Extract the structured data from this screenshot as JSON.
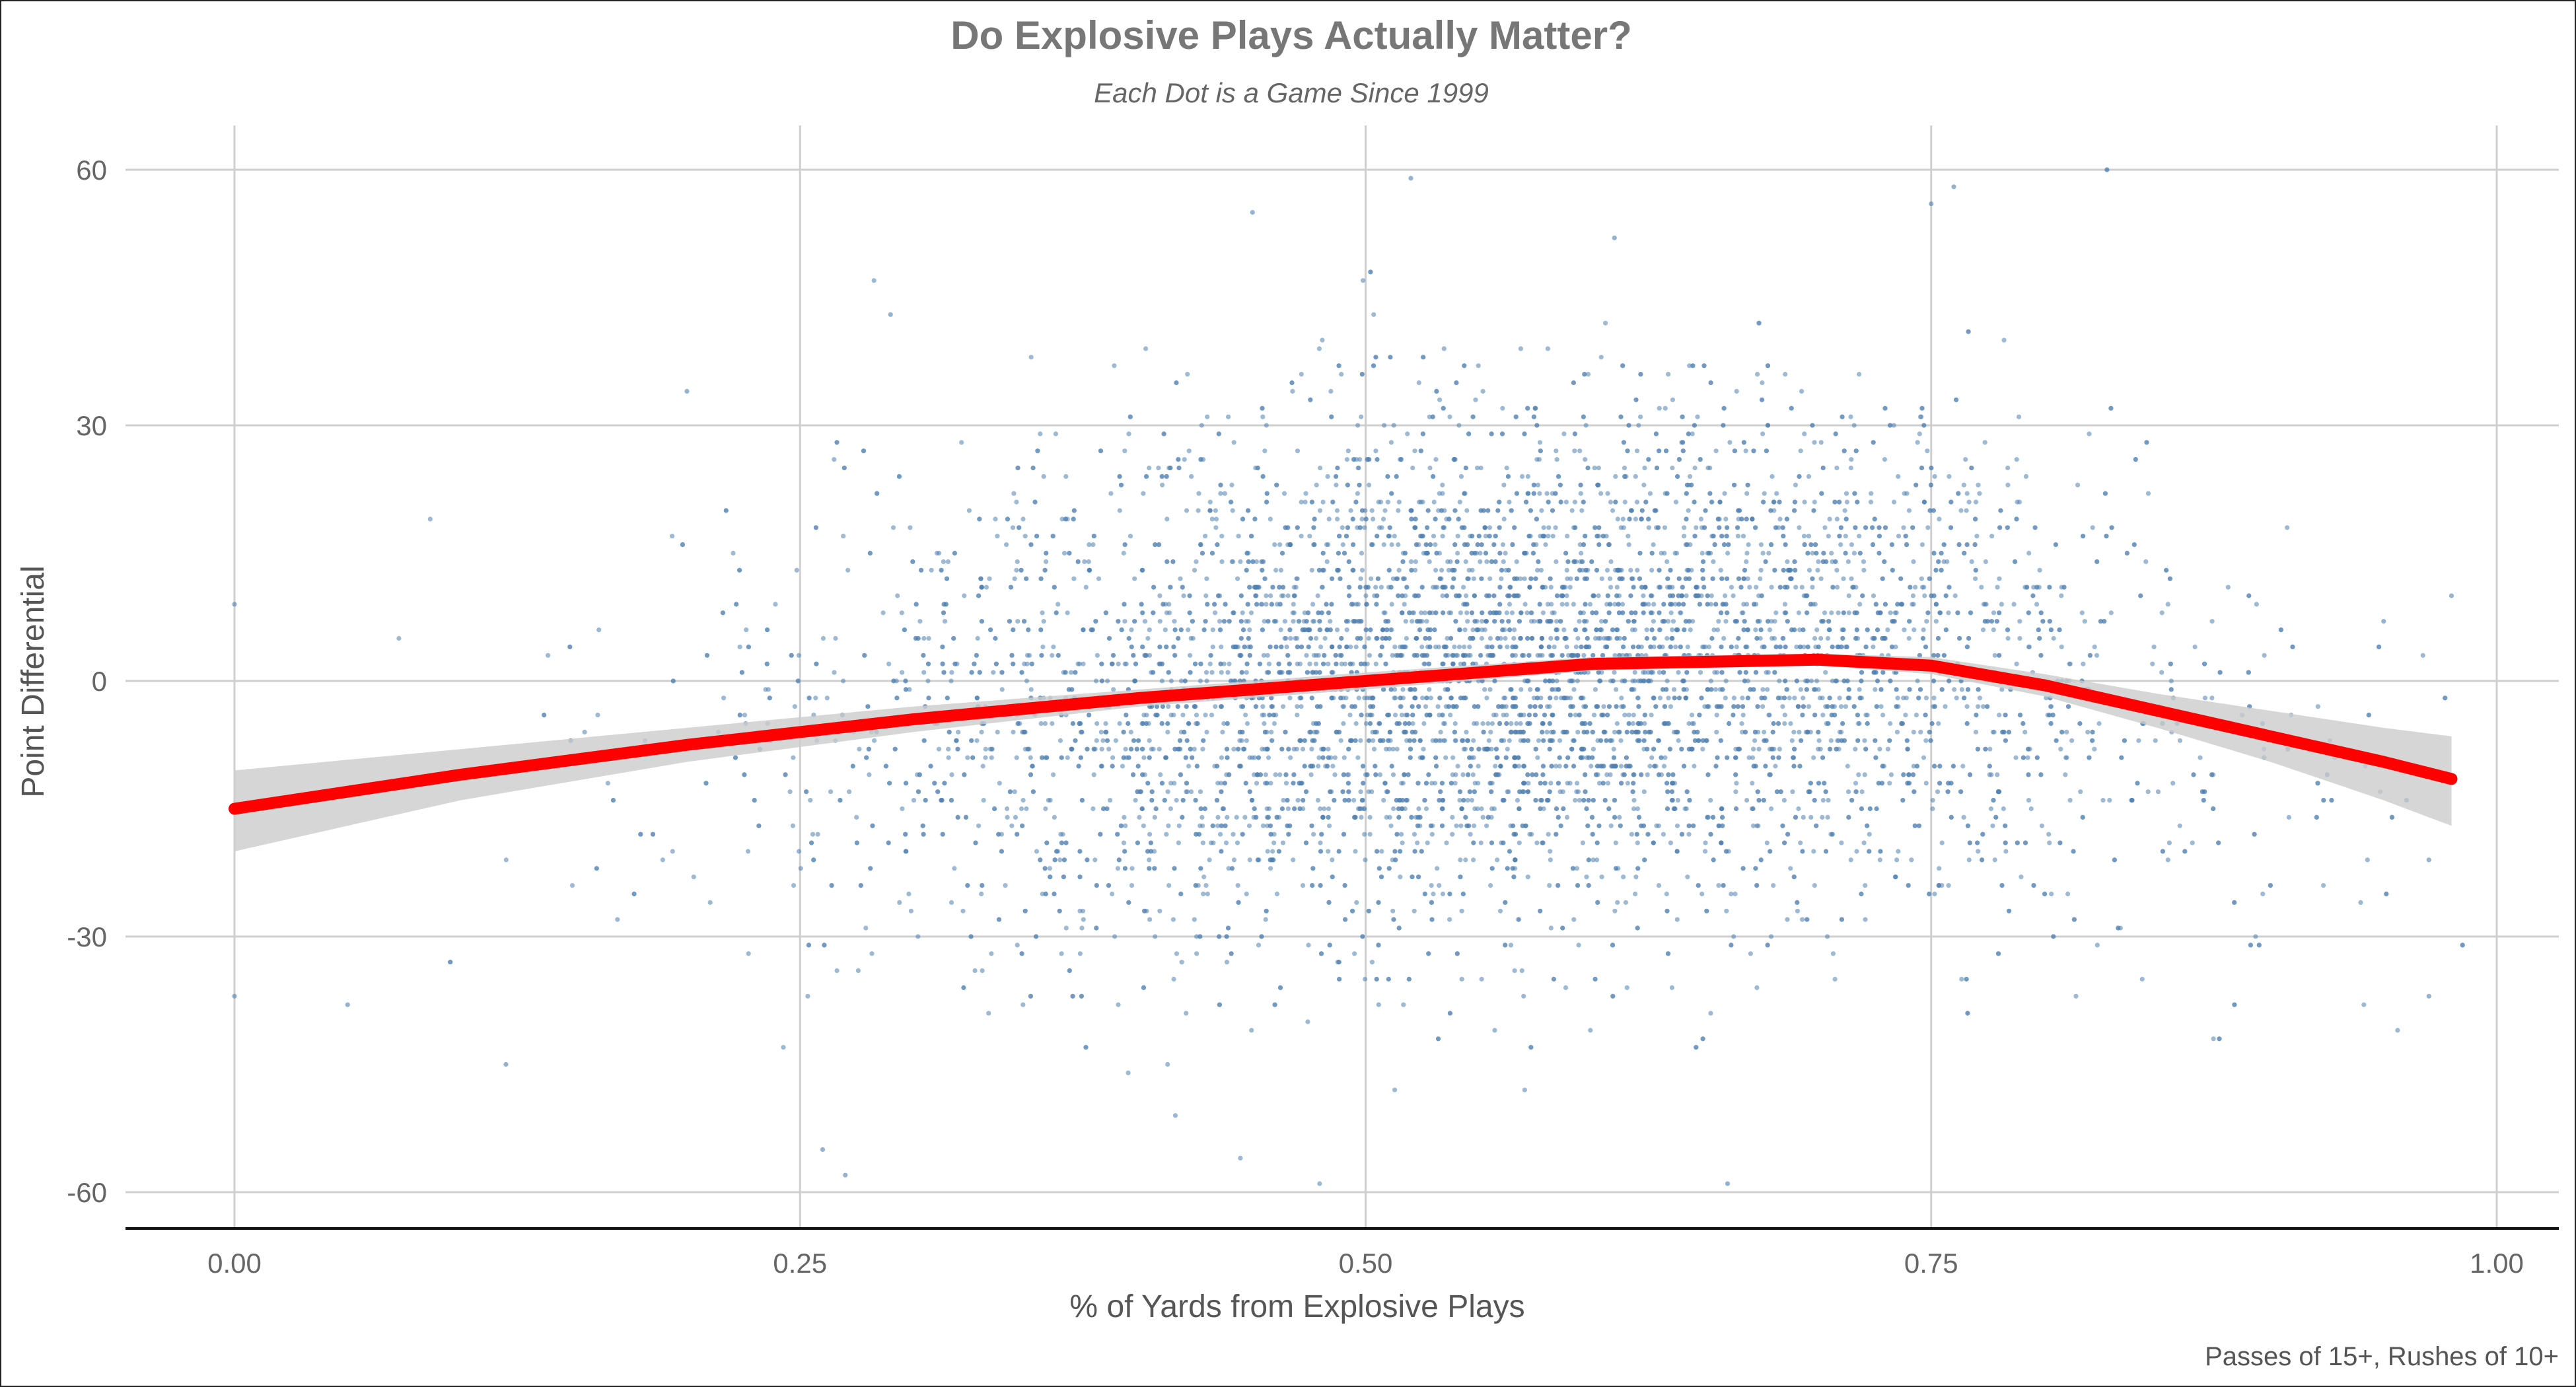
{
  "chart_data": {
    "type": "scatter",
    "title": "Do Explosive Plays Actually Matter?",
    "subtitle": "Each Dot is a Game Since 1999",
    "xlabel": "% of Yards from Explosive Plays",
    "ylabel": "Point Differential",
    "caption": "Passes of 15+, Rushes of 10+",
    "xlim": [
      -0.048,
      1.03
    ],
    "ylim": [
      -64.5,
      65
    ],
    "x_ticks": [
      0.0,
      0.25,
      0.5,
      0.75,
      1.0
    ],
    "x_tick_labels": [
      "0.00",
      "0.25",
      "0.50",
      "0.75",
      "1.00"
    ],
    "y_ticks": [
      -60,
      -30,
      0,
      30,
      60
    ],
    "y_tick_labels": [
      "-60",
      "-30",
      "0",
      "30",
      "60"
    ],
    "grid": true,
    "points_description": "several thousand games, concentrated between x 0.25 and 0.85, y -45 to 45",
    "point_color": "#4f7fb0",
    "point_count_estimate": 7000,
    "example_points": [
      {
        "x": 0.0,
        "y": 9
      },
      {
        "x": 0.0,
        "y": -37
      },
      {
        "x": 0.05,
        "y": -38
      },
      {
        "x": 0.12,
        "y": -45
      },
      {
        "x": 0.2,
        "y": 34
      },
      {
        "x": 0.29,
        "y": 43
      },
      {
        "x": 0.26,
        "y": -55
      },
      {
        "x": 0.27,
        "y": -58
      },
      {
        "x": 0.45,
        "y": 55
      },
      {
        "x": 0.52,
        "y": 59
      },
      {
        "x": 0.61,
        "y": 52
      },
      {
        "x": 0.66,
        "y": -59
      },
      {
        "x": 0.76,
        "y": 58
      },
      {
        "x": 0.75,
        "y": 56
      },
      {
        "x": 0.95,
        "y": 7
      },
      {
        "x": 0.98,
        "y": 10
      },
      {
        "x": 0.97,
        "y": -37
      },
      {
        "x": 0.97,
        "y": -21
      }
    ],
    "smooth": {
      "color": "#ff0000",
      "band_color": "#cccccc",
      "x": [
        0.0,
        0.1,
        0.2,
        0.3,
        0.4,
        0.5,
        0.6,
        0.7,
        0.75,
        0.8,
        0.85,
        0.9,
        0.95,
        0.98
      ],
      "y": [
        -15,
        -11,
        -7.5,
        -4.5,
        -2,
        0,
        2,
        2.5,
        1.8,
        -0.5,
        -3.5,
        -6.5,
        -9.5,
        -11.5
      ],
      "lower": [
        -20,
        -14,
        -9.5,
        -6,
        -3,
        -1,
        1.2,
        1.8,
        0.8,
        -1.8,
        -5.5,
        -9.5,
        -14,
        -17
      ],
      "upper": [
        -10.5,
        -8,
        -5.5,
        -3,
        -1,
        1,
        2.8,
        3.2,
        2.8,
        0.8,
        -1.5,
        -3.5,
        -5.5,
        -6.5
      ]
    }
  }
}
